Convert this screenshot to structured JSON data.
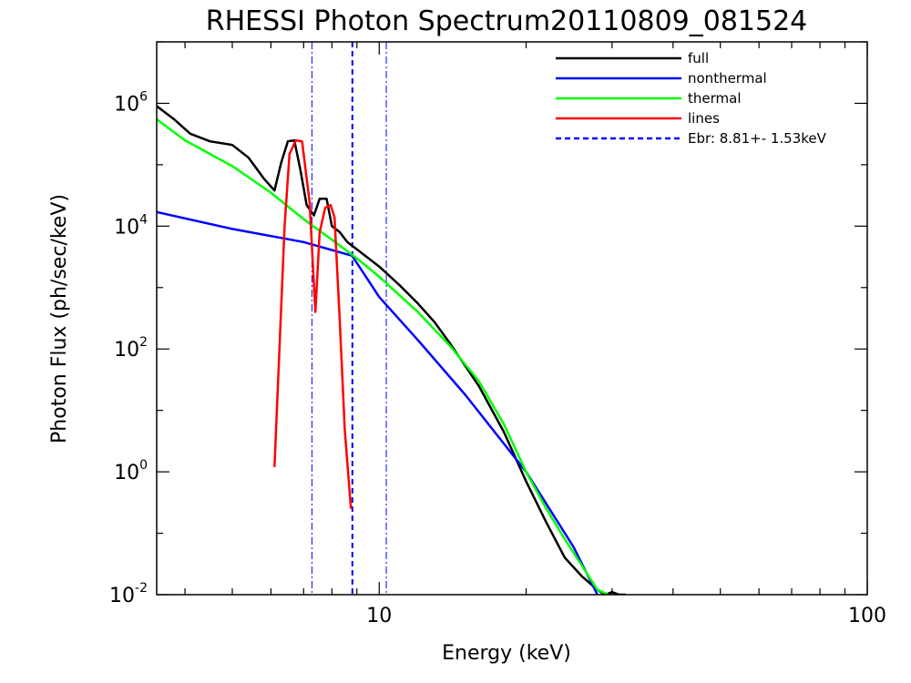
{
  "chart_data": {
    "type": "line",
    "title": "RHESSI Photon Spectrum20110809_081524",
    "xlabel": "Energy (keV)",
    "ylabel": "Photon Flux (ph/sec/keV)",
    "x_scale": "log",
    "y_scale": "log",
    "xlim": [
      3.5,
      100
    ],
    "ylim": [
      0.01,
      10000000
    ],
    "grid": false,
    "legend_position": "top-right",
    "x_ticks": [
      {
        "value": 10,
        "label": "10"
      },
      {
        "value": 100,
        "label": "100"
      }
    ],
    "y_ticks": [
      {
        "value": 0.01,
        "base": "10",
        "exp": "-2"
      },
      {
        "value": 1,
        "base": "10",
        "exp": "0"
      },
      {
        "value": 100,
        "base": "10",
        "exp": "2"
      },
      {
        "value": 10000,
        "base": "10",
        "exp": "4"
      },
      {
        "value": 1000000,
        "base": "10",
        "exp": "6"
      }
    ],
    "series": [
      {
        "name": "full",
        "color": "#000000",
        "style": "solid",
        "x": [
          3.5,
          3.8,
          4.1,
          4.5,
          5.0,
          5.4,
          5.8,
          6.1,
          6.3,
          6.5,
          6.7,
          6.9,
          7.1,
          7.35,
          7.55,
          7.8,
          8.0,
          8.3,
          8.6,
          9.0,
          10.0,
          11.0,
          12.0,
          13.0,
          14.0,
          16.0,
          18.0,
          20.0,
          22.0,
          24.0,
          26.0,
          28.0,
          29.0,
          30.0,
          31.0,
          32.0
        ],
        "y": [
          900000,
          550000,
          320000,
          240000,
          210000,
          130000,
          60000,
          38000,
          110000,
          240000,
          250000,
          80000,
          22000,
          15000,
          28000,
          28000,
          10000,
          8000,
          5500,
          4200,
          2200,
          1100,
          550,
          270,
          120,
          25,
          4.5,
          0.7,
          0.15,
          0.04,
          0.02,
          0.012,
          0.01,
          0.011,
          0.01,
          0.01
        ]
      },
      {
        "name": "nonthermal",
        "color": "#0000ff",
        "style": "solid",
        "x": [
          3.5,
          5.0,
          7.0,
          8.8,
          10.0,
          12.0,
          15.0,
          20.0,
          25.0,
          28.0
        ],
        "y": [
          17000,
          9000,
          5500,
          3300,
          700,
          140,
          18,
          1.0,
          0.06,
          0.01
        ]
      },
      {
        "name": "thermal",
        "color": "#00ff00",
        "style": "solid",
        "x": [
          3.5,
          4.0,
          5.0,
          6.0,
          7.0,
          8.0,
          9.0,
          10.0,
          12.0,
          14.0,
          16.0,
          18.0,
          20.0,
          22.0,
          24.0,
          26.0,
          28.0,
          29.5
        ],
        "y": [
          550000,
          250000,
          95000,
          35000,
          13000,
          6000,
          3000,
          1500,
          400,
          110,
          30,
          6,
          1.0,
          0.25,
          0.08,
          0.03,
          0.012,
          0.01
        ]
      },
      {
        "name": "lines",
        "color": "#ff0000",
        "style": "solid",
        "x": [
          6.1,
          6.4,
          6.55,
          6.75,
          6.95,
          7.2,
          7.4,
          7.55,
          7.75,
          7.95,
          8.1,
          8.3,
          8.5,
          8.75
        ],
        "y": [
          1.2,
          10000,
          150000,
          250000,
          240000,
          25000,
          400,
          8000,
          20000,
          22000,
          14000,
          300,
          5,
          0.25
        ]
      }
    ],
    "vertical_lines": [
      {
        "name": "Ebr:   8.81+-  1.53keV",
        "x": 8.81,
        "color": "#0000ff",
        "style": "dashed",
        "in_legend": true
      },
      {
        "x": 7.28,
        "color": "#0000ff",
        "style": "dashdot",
        "in_legend": false
      },
      {
        "x": 10.34,
        "color": "#0000ff",
        "style": "dashdot",
        "in_legend": false
      }
    ],
    "legend": [
      {
        "label": "full",
        "color": "#000000",
        "style": "solid"
      },
      {
        "label": "nonthermal",
        "color": "#0000ff",
        "style": "solid"
      },
      {
        "label": "thermal",
        "color": "#00ff00",
        "style": "solid"
      },
      {
        "label": "lines",
        "color": "#ff0000",
        "style": "solid"
      },
      {
        "label": "Ebr:   8.81+-  1.53keV",
        "color": "#0000ff",
        "style": "dashed"
      }
    ]
  }
}
